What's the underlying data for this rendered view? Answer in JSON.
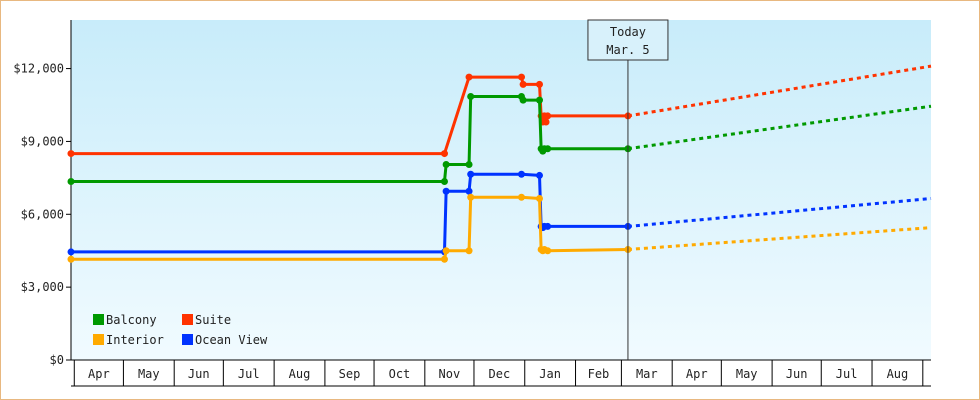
{
  "chart_data": {
    "type": "line",
    "title": "",
    "xlabel": "",
    "ylabel": "",
    "ylim": [
      0,
      14000
    ],
    "y_ticks": [
      0,
      3000,
      6000,
      9000,
      12000
    ],
    "y_tick_labels": [
      "$0",
      "$3,000",
      "$6,000",
      "$9,000",
      "$12,000"
    ],
    "x_range": [
      "2021-03-30",
      "2022-09-06"
    ],
    "month_labels": [
      {
        "label": "Apr",
        "start": "2021-04-01"
      },
      {
        "label": "May",
        "start": "2021-05-01"
      },
      {
        "label": "Jun",
        "start": "2021-06-01"
      },
      {
        "label": "Jul",
        "start": "2021-07-01"
      },
      {
        "label": "Aug",
        "start": "2021-08-01"
      },
      {
        "label": "Sep",
        "start": "2021-09-01"
      },
      {
        "label": "Oct",
        "start": "2021-10-01"
      },
      {
        "label": "Nov",
        "start": "2021-11-01"
      },
      {
        "label": "Dec",
        "start": "2021-12-01"
      },
      {
        "label": "Jan",
        "start": "2022-01-01"
      },
      {
        "label": "Feb",
        "start": "2022-02-01"
      },
      {
        "label": "Mar",
        "start": "2022-03-01"
      },
      {
        "label": "Apr",
        "start": "2022-04-01"
      },
      {
        "label": "May",
        "start": "2022-05-01"
      },
      {
        "label": "Jun",
        "start": "2022-06-01"
      },
      {
        "label": "Jul",
        "start": "2022-07-01"
      },
      {
        "label": "Aug",
        "start": "2022-08-01"
      },
      {
        "label": "",
        "start": "2022-09-01"
      }
    ],
    "today": {
      "line1": "Today",
      "line2": "Mar. 5",
      "date": "2022-03-05"
    },
    "grid": false,
    "legend_position": "bottom-left",
    "series": [
      {
        "name": "Suite",
        "color": "#ff3300",
        "points": [
          [
            "2021-03-30",
            8500
          ],
          [
            "2021-11-13",
            8500
          ],
          [
            "2021-11-28",
            11650
          ],
          [
            "2021-12-30",
            11650
          ],
          [
            "2021-12-31",
            11350
          ],
          [
            "2022-01-10",
            11350
          ],
          [
            "2022-01-11",
            10050
          ],
          [
            "2022-01-12",
            9800
          ],
          [
            "2022-01-13",
            10050
          ],
          [
            "2022-01-14",
            9800
          ],
          [
            "2022-01-15",
            10050
          ],
          [
            "2022-03-05",
            10050
          ]
        ],
        "forecast": [
          [
            "2022-03-05",
            10050
          ],
          [
            "2022-09-06",
            12100
          ]
        ]
      },
      {
        "name": "Balcony",
        "color": "#009900",
        "points": [
          [
            "2021-03-30",
            7350
          ],
          [
            "2021-11-13",
            7350
          ],
          [
            "2021-11-14",
            8050
          ],
          [
            "2021-11-28",
            8050
          ],
          [
            "2021-11-29",
            10850
          ],
          [
            "2021-12-30",
            10850
          ],
          [
            "2021-12-31",
            10700
          ],
          [
            "2022-01-10",
            10700
          ],
          [
            "2022-01-11",
            8700
          ],
          [
            "2022-01-12",
            8600
          ],
          [
            "2022-01-13",
            8700
          ],
          [
            "2022-01-15",
            8700
          ],
          [
            "2022-03-05",
            8700
          ]
        ],
        "forecast": [
          [
            "2022-03-05",
            8700
          ],
          [
            "2022-09-06",
            10450
          ]
        ]
      },
      {
        "name": "Ocean View",
        "color": "#0033ff",
        "points": [
          [
            "2021-03-30",
            4450
          ],
          [
            "2021-11-13",
            4450
          ],
          [
            "2021-11-14",
            6950
          ],
          [
            "2021-11-28",
            6950
          ],
          [
            "2021-11-29",
            7650
          ],
          [
            "2021-12-30",
            7650
          ],
          [
            "2022-01-10",
            7600
          ],
          [
            "2022-01-11",
            5500
          ],
          [
            "2022-01-12",
            5450
          ],
          [
            "2022-01-13",
            5500
          ],
          [
            "2022-01-15",
            5500
          ],
          [
            "2022-03-05",
            5500
          ]
        ],
        "forecast": [
          [
            "2022-03-05",
            5500
          ],
          [
            "2022-09-06",
            6650
          ]
        ]
      },
      {
        "name": "Interior",
        "color": "#ffaa00",
        "points": [
          [
            "2021-03-30",
            4150
          ],
          [
            "2021-11-13",
            4150
          ],
          [
            "2021-11-14",
            4500
          ],
          [
            "2021-11-28",
            4500
          ],
          [
            "2021-11-29",
            6700
          ],
          [
            "2021-12-30",
            6700
          ],
          [
            "2022-01-10",
            6650
          ],
          [
            "2022-01-11",
            4550
          ],
          [
            "2022-01-12",
            4500
          ],
          [
            "2022-01-13",
            4550
          ],
          [
            "2022-01-15",
            4500
          ],
          [
            "2022-03-05",
            4550
          ]
        ],
        "forecast": [
          [
            "2022-03-05",
            4550
          ],
          [
            "2022-09-06",
            5450
          ]
        ]
      }
    ],
    "legend_order": [
      "Balcony",
      "Suite",
      "Interior",
      "Ocean View"
    ]
  }
}
